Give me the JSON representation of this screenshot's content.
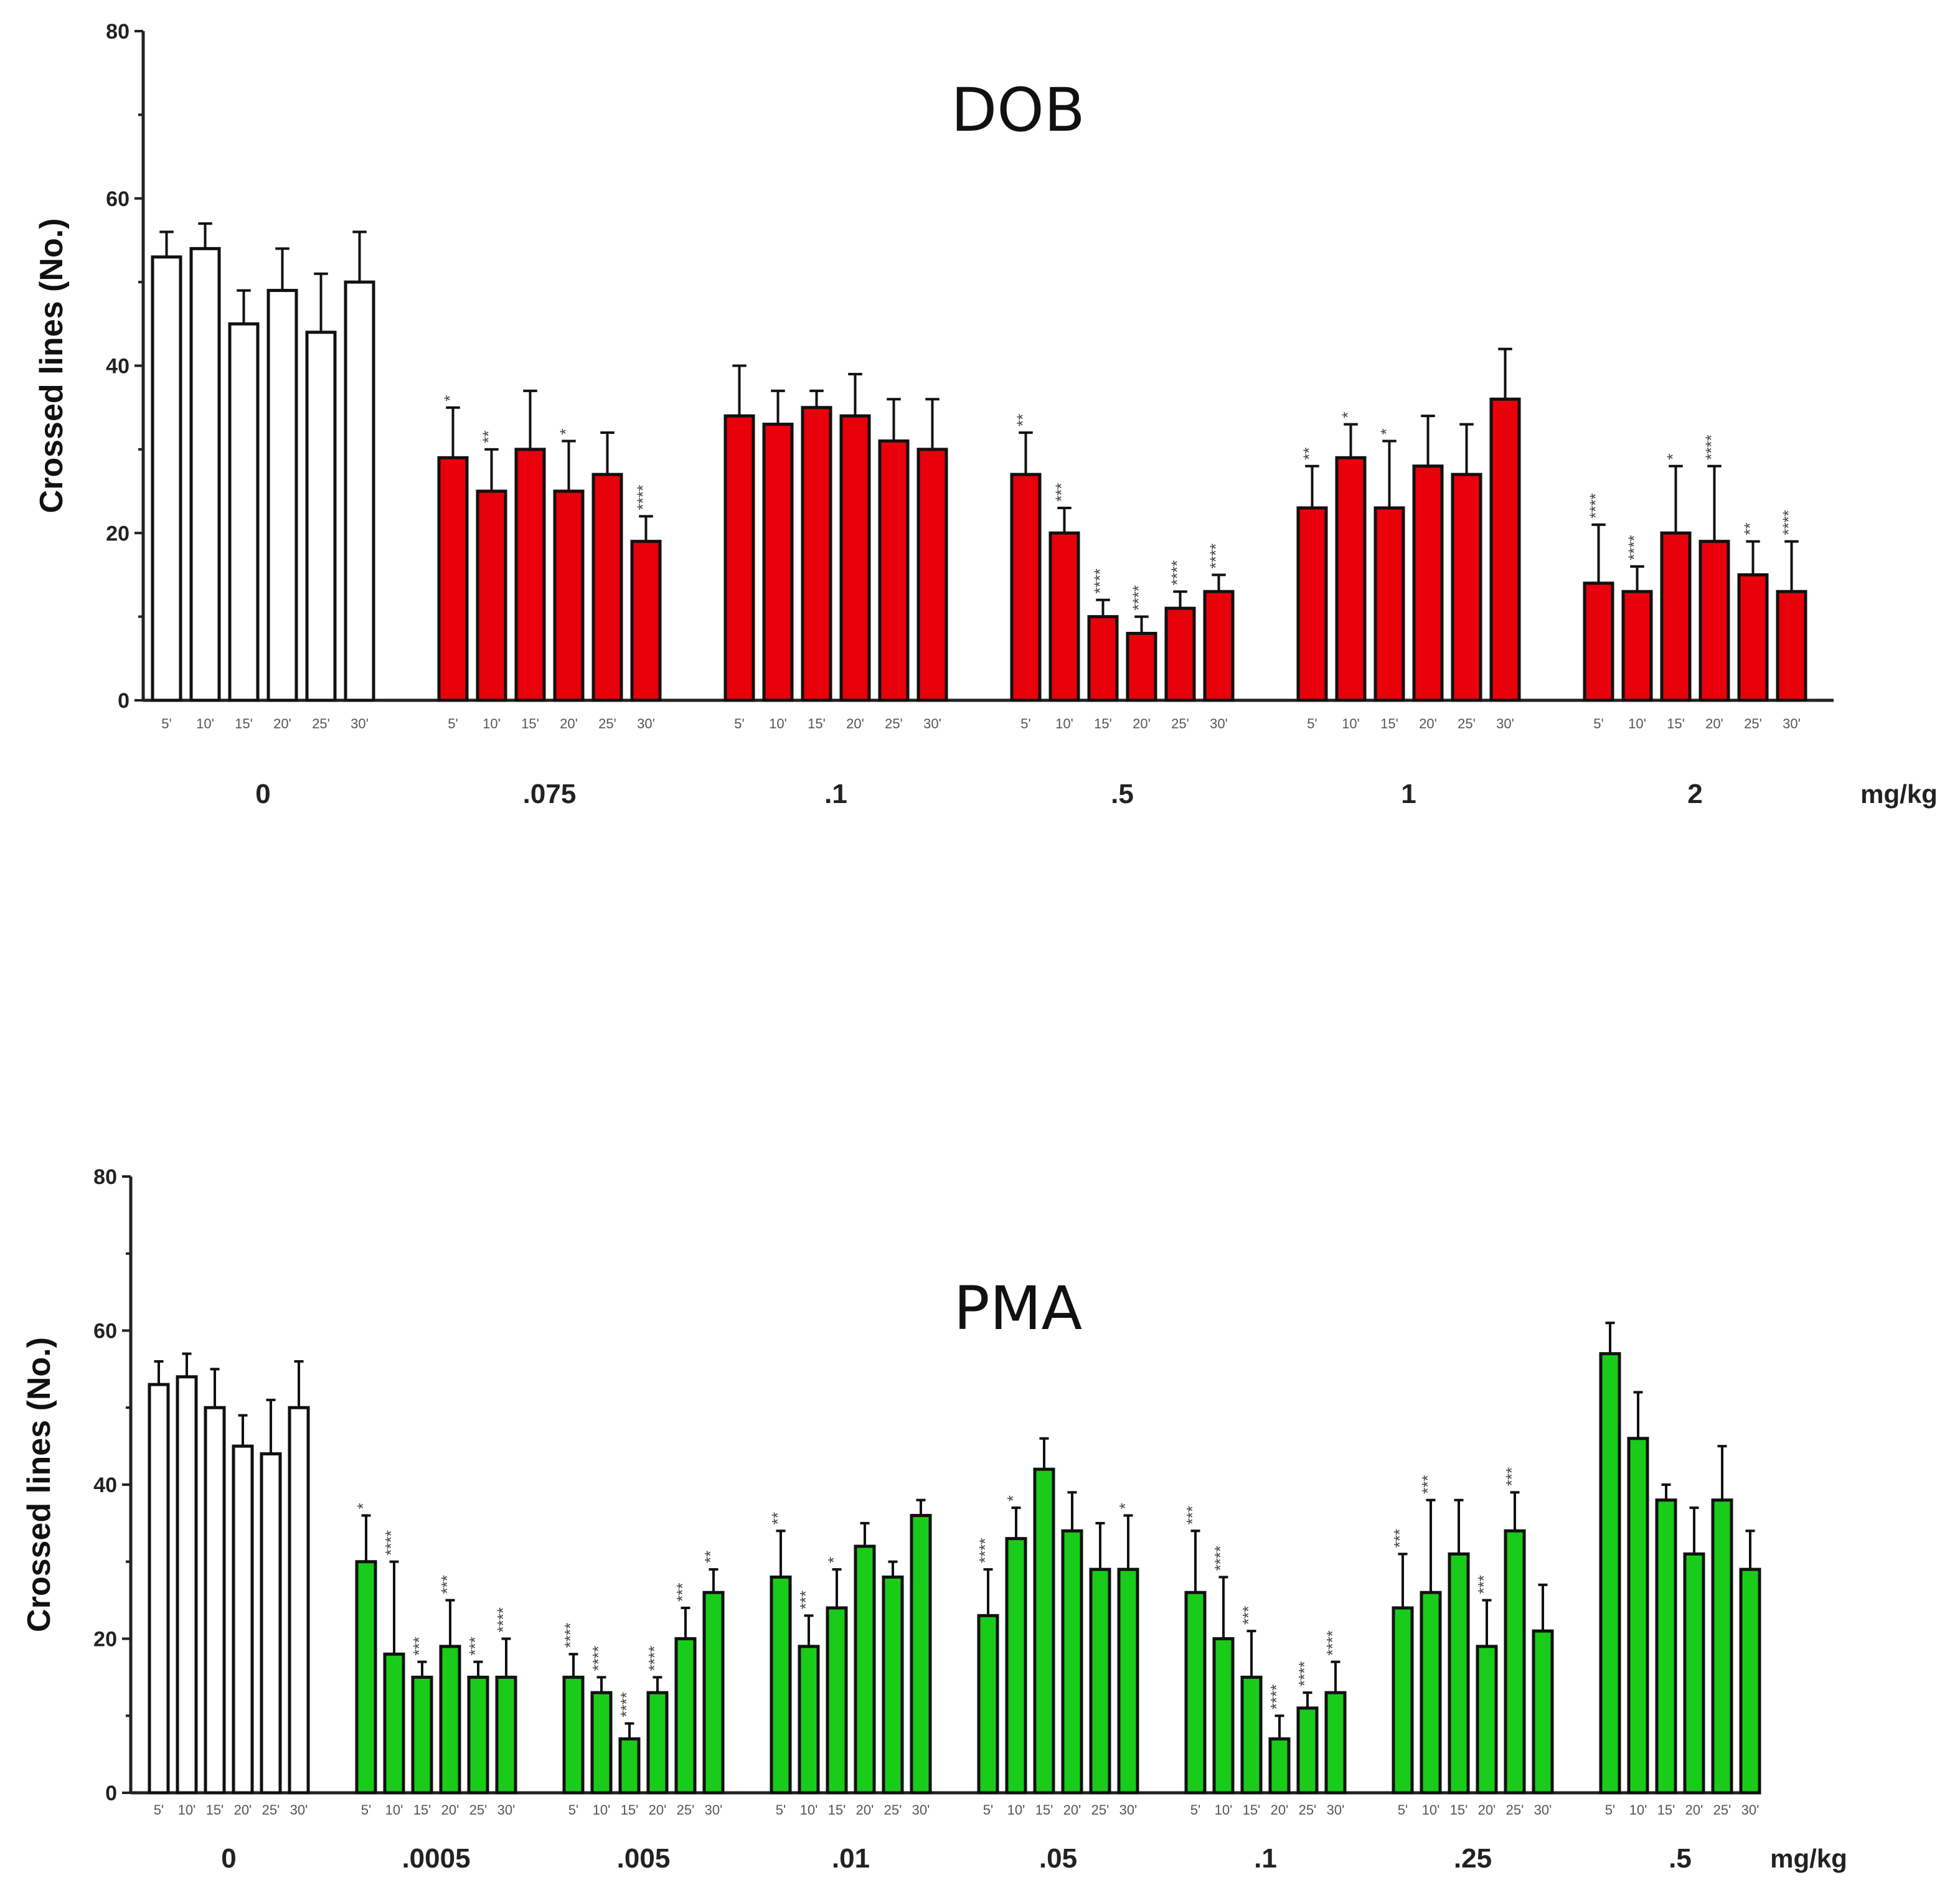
{
  "chart_data": [
    {
      "id": "dob",
      "type": "bar",
      "title": "DOB",
      "ylabel": "Crossed lines (No.)",
      "ylim": [
        0,
        80
      ],
      "yticks": [
        "0",
        "20",
        "40",
        "60",
        "80"
      ],
      "unit": "mg/kg",
      "time_labels": [
        "5'",
        "10'",
        "15'",
        "20'",
        "25'",
        "30'"
      ],
      "control_color": "#ffffff",
      "treatment_color": "#e8000b",
      "groups": [
        {
          "label": "0",
          "control": true,
          "values": [
            53,
            54,
            45,
            49,
            44,
            50
          ],
          "errors": [
            3,
            3,
            4,
            5,
            7,
            6
          ],
          "sig": [
            "",
            "",
            "",
            "",
            "",
            ""
          ]
        },
        {
          "label": ".075",
          "control": false,
          "values": [
            29,
            25,
            30,
            25,
            27,
            19
          ],
          "errors": [
            6,
            5,
            7,
            6,
            5,
            3
          ],
          "sig": [
            "*",
            "**",
            "",
            "*",
            "",
            "****"
          ]
        },
        {
          "label": ".1",
          "control": false,
          "values": [
            34,
            33,
            35,
            34,
            31,
            30
          ],
          "errors": [
            6,
            4,
            2,
            5,
            5,
            6
          ],
          "sig": [
            "",
            "",
            "",
            "",
            "",
            ""
          ]
        },
        {
          "label": ".5",
          "control": false,
          "values": [
            27,
            20,
            10,
            8,
            11,
            13
          ],
          "errors": [
            5,
            3,
            2,
            2,
            2,
            2
          ],
          "sig": [
            "**",
            "***",
            "****",
            "****",
            "****",
            "****"
          ]
        },
        {
          "label": "1",
          "control": false,
          "values": [
            23,
            29,
            23,
            28,
            27,
            36
          ],
          "errors": [
            5,
            4,
            8,
            6,
            6,
            6
          ],
          "sig": [
            "**",
            "*",
            "*",
            "",
            "",
            ""
          ]
        },
        {
          "label": "2",
          "control": false,
          "values": [
            14,
            13,
            20,
            19,
            15,
            13
          ],
          "errors": [
            7,
            3,
            8,
            9,
            4,
            6
          ],
          "sig": [
            "****",
            "****",
            "*",
            "****",
            "**",
            "****"
          ]
        }
      ]
    },
    {
      "id": "pma",
      "type": "bar",
      "title": "PMA",
      "ylabel": "Crossed lines (No.)",
      "ylim": [
        0,
        80
      ],
      "yticks": [
        "0",
        "20",
        "40",
        "60",
        "80"
      ],
      "unit": "mg/kg",
      "time_labels": [
        "5'",
        "10'",
        "15'",
        "20'",
        "25'",
        "30'"
      ],
      "control_color": "#ffffff",
      "treatment_color": "#19cc19",
      "groups": [
        {
          "label": "0",
          "control": true,
          "values": [
            53,
            54,
            50,
            45,
            44,
            50
          ],
          "errors": [
            3,
            3,
            5,
            4,
            7,
            6
          ],
          "sig": [
            "",
            "",
            "",
            "",
            "",
            ""
          ]
        },
        {
          "label": ".0005",
          "control": false,
          "values": [
            30,
            18,
            15,
            19,
            15,
            15
          ],
          "errors": [
            6,
            12,
            2,
            6,
            2,
            5
          ],
          "sig": [
            "*",
            "****",
            "***",
            "***",
            "***",
            "****"
          ]
        },
        {
          "label": ".005",
          "control": false,
          "values": [
            15,
            13,
            7,
            13,
            20,
            26
          ],
          "errors": [
            3,
            2,
            2,
            2,
            4,
            3
          ],
          "sig": [
            "****",
            "****",
            "****",
            "****",
            "***",
            "**"
          ]
        },
        {
          "label": ".01",
          "control": false,
          "values": [
            28,
            19,
            24,
            32,
            28,
            36
          ],
          "errors": [
            6,
            4,
            5,
            3,
            2,
            2
          ],
          "sig": [
            "**",
            "***",
            "*",
            "",
            "",
            ""
          ]
        },
        {
          "label": ".05",
          "control": false,
          "values": [
            23,
            33,
            42,
            34,
            29,
            29
          ],
          "errors": [
            6,
            4,
            4,
            5,
            6,
            7
          ],
          "sig": [
            "****",
            "*",
            "",
            "",
            "",
            "*"
          ]
        },
        {
          "label": ".1",
          "control": false,
          "values": [
            26,
            20,
            15,
            7,
            11,
            13
          ],
          "errors": [
            8,
            8,
            6,
            3,
            2,
            4
          ],
          "sig": [
            "***",
            "****",
            "***",
            "****",
            "****",
            "****"
          ]
        },
        {
          "label": ".25",
          "control": false,
          "values": [
            24,
            26,
            31,
            19,
            34,
            21
          ],
          "errors": [
            7,
            12,
            7,
            6,
            5,
            6
          ],
          "sig": [
            "***",
            "***",
            "",
            "***",
            "***",
            ""
          ]
        },
        {
          "label": ".5",
          "control": false,
          "values": [
            57,
            46,
            38,
            31,
            38,
            29
          ],
          "errors": [
            4,
            6,
            2,
            6,
            7,
            5
          ],
          "sig": [
            "",
            "",
            "",
            "",
            "",
            ""
          ]
        }
      ]
    }
  ]
}
